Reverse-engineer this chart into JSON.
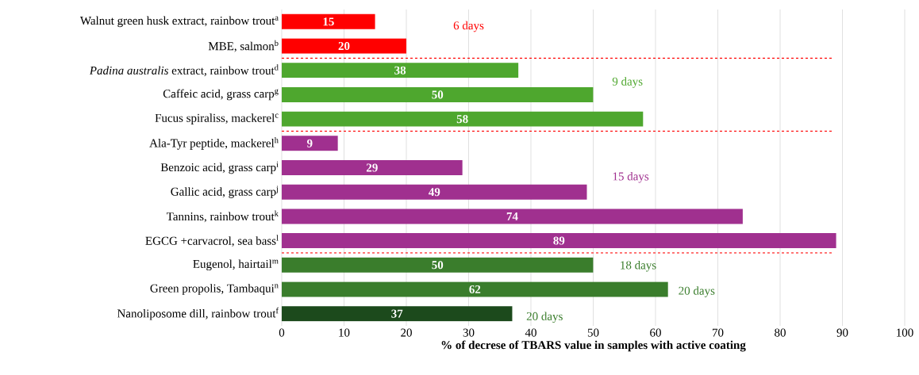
{
  "chart_data": {
    "type": "bar",
    "orientation": "horizontal",
    "xlabel": "% of decrese of TBARS value in samples with active coating",
    "categories": [
      "Walnut green husk extract, rainbow trout$^{a}$",
      "MBE, salmon$^{b}$",
      "*Padina australis* extract, rainbow trout$^{d}$",
      "Caffeic acid, grass carp$^{g}$",
      "Fucus spiraliss, mackerel$^{c}$",
      "Ala-Tyr peptide, mackerel$^{h}$",
      "Benzoic acid, grass carp$^{i}$",
      "Gallic acid, grass carp$^{j}$",
      "Tannins, rainbow trout$^{k}$",
      "EGCG +carvacrol, sea bass$^{l}$",
      "Eugenol, hairtail$^{m}$",
      "Green propolis, Tambaqui$^{n}$",
      "Nanoliposome dill,  rainbow trout$^{f}$"
    ],
    "values": [
      15,
      20,
      38,
      50,
      58,
      9,
      29,
      49,
      74,
      89,
      50,
      62,
      37
    ],
    "colors": [
      "#ff0000",
      "#ff0000",
      "#4ea72e",
      "#4ea72e",
      "#4ea72e",
      "#a0308f",
      "#a0308f",
      "#a0308f",
      "#a0308f",
      "#a0308f",
      "#3a7d2c",
      "#3a7d2c",
      "#1c4a1c"
    ],
    "data_labels": true,
    "xlim": [
      0,
      100
    ],
    "xticks": [
      0,
      10,
      20,
      30,
      40,
      50,
      60,
      70,
      80,
      90,
      100
    ],
    "grid": "x",
    "annotations": [
      "6 days",
      "9 days",
      "15 days",
      "18 days",
      "20 days",
      "20 days"
    ]
  }
}
